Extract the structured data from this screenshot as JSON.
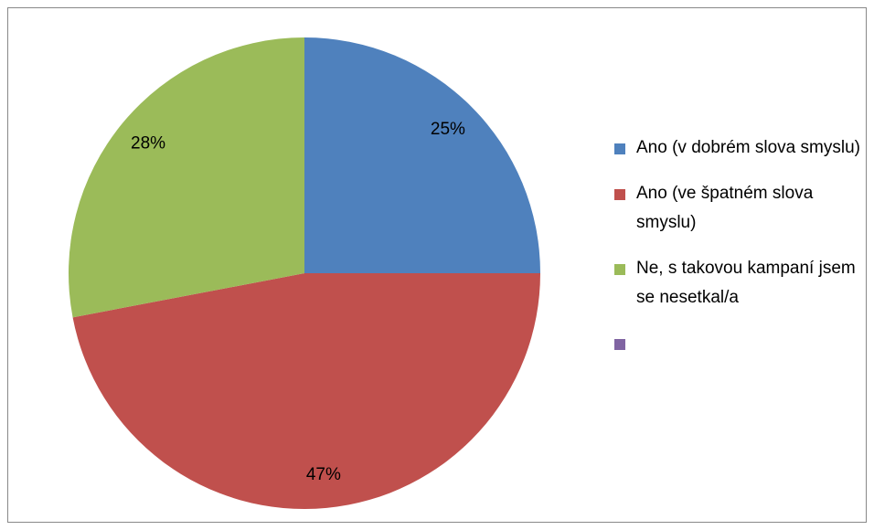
{
  "chart_data": {
    "type": "pie",
    "categories": [
      "Ano (v dobrém slova smyslu)",
      "Ano (ve špatném slova smyslu)",
      "Ne, s takovou kampaní jsem se nesetkal/a",
      null
    ],
    "values": [
      25,
      47,
      28,
      0
    ],
    "value_labels": [
      "25%",
      "47%",
      "28%",
      null
    ],
    "colors": [
      "#4f81bd",
      "#c0504d",
      "#9bbb59",
      "#8064a2"
    ],
    "legend": "right"
  }
}
